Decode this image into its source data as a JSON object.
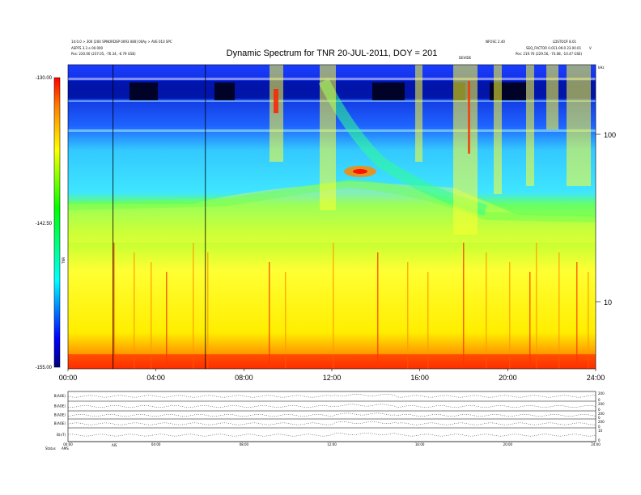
{
  "chart_data": {
    "type": "heatmap",
    "title": "Dynamic Spectrum for TNR 20-JUL-2011, DOY = 201",
    "header_left": [
      "14:0.0 > 300 [200 SPNORDSP 0093 080] 00Ay > AVE 010 SPC",
      "ASPFS 3.3 e 00.000",
      "Pos: 220.00 (237.05, -76.34, -6.79 GSE)"
    ],
    "header_right_top": [
      "NFOSC 2.40",
      "LDSTOOF 8.01"
    ],
    "header_right_mid": "SEQ_FACTOR 0.011-09.0 23.00.01",
    "header_right_pos": "Pos: 219.76 (229.56, -74.08, -10.47 GSE)",
    "header_right_corner": "V",
    "header_mid_small": "DEVIDE",
    "kHz_label": "kHz",
    "colorbar": {
      "label": "TNR",
      "ticks": [
        "-130.00",
        "-142.50",
        "-155.00"
      ],
      "range": [
        -155,
        -130
      ]
    },
    "x_ticks": [
      "00:00",
      "04:00",
      "08:00",
      "12:00",
      "16:00",
      "20:00",
      "24:00"
    ],
    "x_range_hours": [
      0,
      24
    ],
    "y_ticks": [
      "100",
      "10"
    ],
    "y_scale": "log",
    "vertical_markers_hours": [
      2.05,
      6.25
    ],
    "panels": [
      {
        "label": "B(AOE)",
        "ticks_right": [
          "200",
          "0"
        ]
      },
      {
        "label": "B(AOE)",
        "ticks_right": [
          "200",
          "0"
        ]
      },
      {
        "label": "B(AOE)",
        "ticks_right": [
          "200",
          "0"
        ]
      },
      {
        "label": "B(AOE)",
        "ticks_right": [
          "200",
          "0"
        ]
      },
      {
        "label": "B(nT)",
        "ticks_right": [
          "10",
          "0"
        ]
      }
    ],
    "bottom_ticks": [
      "00:00",
      "04:00",
      "08:00",
      "12:00",
      "16:00",
      "20:00",
      "24:00"
    ],
    "bottom_label": "Status",
    "bottom_label2": "AMS",
    "bottom_label3": "AIS"
  }
}
